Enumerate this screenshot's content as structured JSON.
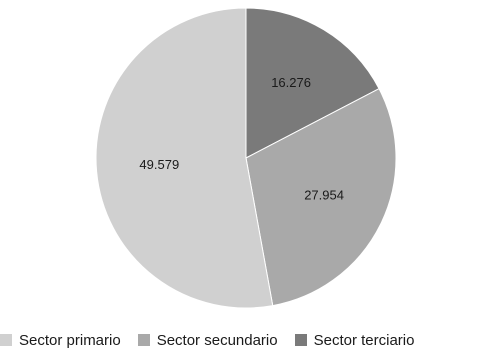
{
  "chart_data": {
    "type": "pie",
    "title": "",
    "categories": [
      "Sector primario",
      "Sector secundario",
      "Sector terciario"
    ],
    "values": [
      49.579,
      27.954,
      16.276
    ],
    "value_labels": [
      "49.579",
      "27.954",
      "16.276"
    ],
    "colors": [
      "#d0d0d0",
      "#a9a9a9",
      "#7a7a7a"
    ],
    "legend_position": "bottom",
    "start_angle": "top",
    "slice_order": [
      "Sector terciario",
      "Sector secundario",
      "Sector primario"
    ]
  }
}
